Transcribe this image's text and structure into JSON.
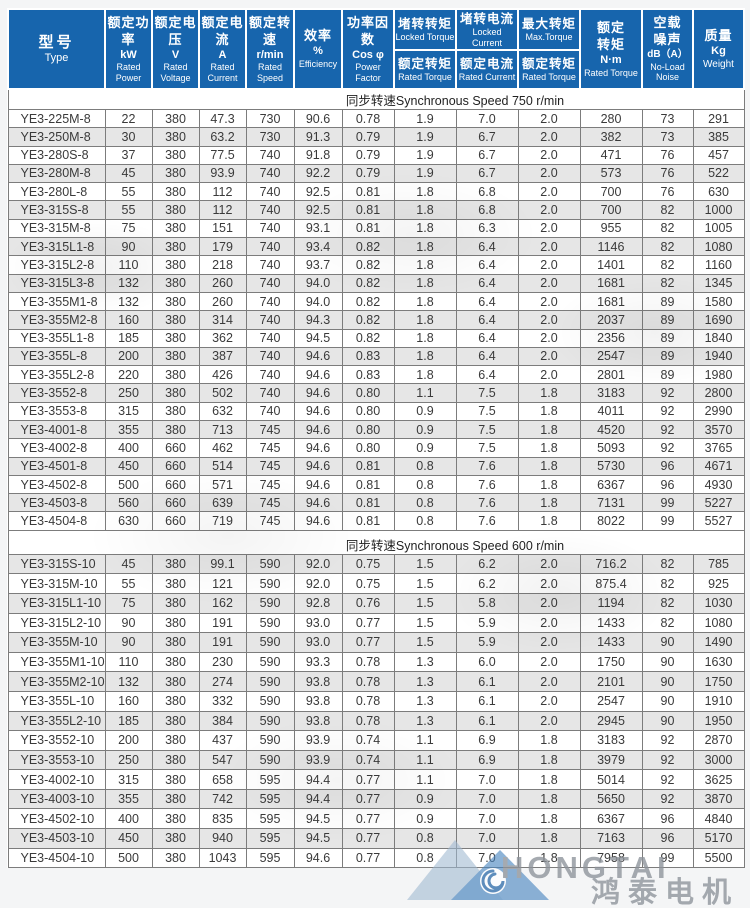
{
  "colors": {
    "header_bg": "#1765ad",
    "header_text": "#ffffff",
    "row_stripe": "#e6e6e6",
    "grid_border": "#7c7c7c",
    "logo_blue_light": "#9fb8d0",
    "logo_blue": "#4a86c0",
    "logo_swirl": "#3570ad",
    "logo_gray": "#8d939a"
  },
  "header": {
    "cols": [
      {
        "cn": "型号",
        "en": "Type"
      },
      {
        "cn": "额定功率",
        "unit": "kW",
        "en": "Rated Power"
      },
      {
        "cn": "额定电压",
        "unit": "V",
        "en": "Rated Voltage"
      },
      {
        "cn": "额定电流",
        "unit": "A",
        "en": "Rated Current"
      },
      {
        "cn": "额定转速",
        "unit": "r/min",
        "en": "Rated Speed"
      },
      {
        "cn": "效率",
        "unit": "%",
        "en": "Efficiency"
      },
      {
        "cn": "功率因数",
        "unit": "Cos φ",
        "en": "Power Factor"
      },
      {
        "cn1": "额定",
        "cn2": "转矩",
        "unit": "N·m",
        "en": "Rated Torque"
      },
      {
        "cn1": "空载",
        "cn2": "噪声",
        "unit": "dB（A）",
        "en": "No-Load Noise"
      },
      {
        "cn": "质量",
        "unit": "Kg",
        "en": "Weight"
      }
    ],
    "split": [
      {
        "top_cn": "堵转转矩",
        "top_en": "Locked Torque",
        "bottom_cn": "额定转矩",
        "bottom_en": "Rated Torque"
      },
      {
        "top_cn": "堵转电流",
        "top_en": "Locked Current",
        "bottom_cn": "额定电流",
        "bottom_en": "Rated Current"
      },
      {
        "top_cn": "最大转矩",
        "top_en": "Max.Torque",
        "bottom_cn": "额定转矩",
        "bottom_en": "Rated Torque"
      }
    ]
  },
  "table": {
    "sections": [
      {
        "title": "同步转速Synchronous Speed 750 r/min",
        "first_row_shaded": false,
        "rows": [
          [
            "YE3-225M-8",
            "22",
            "380",
            "47.3",
            "730",
            "90.6",
            "0.78",
            "1.9",
            "7.0",
            "2.0",
            "280",
            "73",
            "291"
          ],
          [
            "YE3-250M-8",
            "30",
            "380",
            "63.2",
            "730",
            "91.3",
            "0.79",
            "1.9",
            "6.7",
            "2.0",
            "382",
            "73",
            "385"
          ],
          [
            "YE3-280S-8",
            "37",
            "380",
            "77.5",
            "740",
            "91.8",
            "0.79",
            "1.9",
            "6.7",
            "2.0",
            "471",
            "76",
            "457"
          ],
          [
            "YE3-280M-8",
            "45",
            "380",
            "93.9",
            "740",
            "92.2",
            "0.79",
            "1.9",
            "6.7",
            "2.0",
            "573",
            "76",
            "522"
          ],
          [
            "YE3-280L-8",
            "55",
            "380",
            "112",
            "740",
            "92.5",
            "0.81",
            "1.8",
            "6.8",
            "2.0",
            "700",
            "76",
            "630"
          ],
          [
            "YE3-315S-8",
            "55",
            "380",
            "112",
            "740",
            "92.5",
            "0.81",
            "1.8",
            "6.8",
            "2.0",
            "700",
            "82",
            "1000"
          ],
          [
            "YE3-315M-8",
            "75",
            "380",
            "151",
            "740",
            "93.1",
            "0.81",
            "1.8",
            "6.3",
            "2.0",
            "955",
            "82",
            "1005"
          ],
          [
            "YE3-315L1-8",
            "90",
            "380",
            "179",
            "740",
            "93.4",
            "0.82",
            "1.8",
            "6.4",
            "2.0",
            "1146",
            "82",
            "1080"
          ],
          [
            "YE3-315L2-8",
            "110",
            "380",
            "218",
            "740",
            "93.7",
            "0.82",
            "1.8",
            "6.4",
            "2.0",
            "1401",
            "82",
            "1160"
          ],
          [
            "YE3-315L3-8",
            "132",
            "380",
            "260",
            "740",
            "94.0",
            "0.82",
            "1.8",
            "6.4",
            "2.0",
            "1681",
            "82",
            "1345"
          ],
          [
            "YE3-355M1-8",
            "132",
            "380",
            "260",
            "740",
            "94.0",
            "0.82",
            "1.8",
            "6.4",
            "2.0",
            "1681",
            "89",
            "1580"
          ],
          [
            "YE3-355M2-8",
            "160",
            "380",
            "314",
            "740",
            "94.3",
            "0.82",
            "1.8",
            "6.4",
            "2.0",
            "2037",
            "89",
            "1690"
          ],
          [
            "YE3-355L1-8",
            "185",
            "380",
            "362",
            "740",
            "94.5",
            "0.82",
            "1.8",
            "6.4",
            "2.0",
            "2356",
            "89",
            "1840"
          ],
          [
            "YE3-355L-8",
            "200",
            "380",
            "387",
            "740",
            "94.6",
            "0.83",
            "1.8",
            "6.4",
            "2.0",
            "2547",
            "89",
            "1940"
          ],
          [
            "YE3-355L2-8",
            "220",
            "380",
            "426",
            "740",
            "94.6",
            "0.83",
            "1.8",
            "6.4",
            "2.0",
            "2801",
            "89",
            "1980"
          ],
          [
            "YE3-3552-8",
            "250",
            "380",
            "502",
            "740",
            "94.6",
            "0.80",
            "1.1",
            "7.5",
            "1.8",
            "3183",
            "92",
            "2800"
          ],
          [
            "YE3-3553-8",
            "315",
            "380",
            "632",
            "740",
            "94.6",
            "0.80",
            "0.9",
            "7.5",
            "1.8",
            "4011",
            "92",
            "2990"
          ],
          [
            "YE3-4001-8",
            "355",
            "380",
            "713",
            "745",
            "94.6",
            "0.80",
            "0.9",
            "7.5",
            "1.8",
            "4520",
            "92",
            "3570"
          ],
          [
            "YE3-4002-8",
            "400",
            "660",
            "462",
            "745",
            "94.6",
            "0.80",
            "0.9",
            "7.5",
            "1.8",
            "5093",
            "92",
            "3765"
          ],
          [
            "YE3-4501-8",
            "450",
            "660",
            "514",
            "745",
            "94.6",
            "0.81",
            "0.8",
            "7.6",
            "1.8",
            "5730",
            "96",
            "4671"
          ],
          [
            "YE3-4502-8",
            "500",
            "660",
            "571",
            "745",
            "94.6",
            "0.81",
            "0.8",
            "7.6",
            "1.8",
            "6367",
            "96",
            "4930"
          ],
          [
            "YE3-4503-8",
            "560",
            "660",
            "639",
            "745",
            "94.6",
            "0.81",
            "0.8",
            "7.6",
            "1.8",
            "7131",
            "99",
            "5227"
          ],
          [
            "YE3-4504-8",
            "630",
            "660",
            "719",
            "745",
            "94.6",
            "0.81",
            "0.8",
            "7.6",
            "1.8",
            "8022",
            "99",
            "5527"
          ]
        ]
      },
      {
        "title": "同步转速Synchronous Speed 600 r/min",
        "first_row_shaded": true,
        "rows": [
          [
            "YE3-315S-10",
            "45",
            "380",
            "99.1",
            "590",
            "92.0",
            "0.75",
            "1.5",
            "6.2",
            "2.0",
            "716.2",
            "82",
            "785"
          ],
          [
            "YE3-315M-10",
            "55",
            "380",
            "121",
            "590",
            "92.0",
            "0.75",
            "1.5",
            "6.2",
            "2.0",
            "875.4",
            "82",
            "925"
          ],
          [
            "YE3-315L1-10",
            "75",
            "380",
            "162",
            "590",
            "92.8",
            "0.76",
            "1.5",
            "5.8",
            "2.0",
            "1194",
            "82",
            "1030"
          ],
          [
            "YE3-315L2-10",
            "90",
            "380",
            "191",
            "590",
            "93.0",
            "0.77",
            "1.5",
            "5.9",
            "2.0",
            "1433",
            "82",
            "1080"
          ],
          [
            "YE3-355M-10",
            "90",
            "380",
            "191",
            "590",
            "93.0",
            "0.77",
            "1.5",
            "5.9",
            "2.0",
            "1433",
            "90",
            "1490"
          ],
          [
            "YE3-355M1-10",
            "110",
            "380",
            "230",
            "590",
            "93.3",
            "0.78",
            "1.3",
            "6.0",
            "2.0",
            "1750",
            "90",
            "1630"
          ],
          [
            "YE3-355M2-10",
            "132",
            "380",
            "274",
            "590",
            "93.8",
            "0.78",
            "1.3",
            "6.1",
            "2.0",
            "2101",
            "90",
            "1750"
          ],
          [
            "YE3-355L-10",
            "160",
            "380",
            "332",
            "590",
            "93.8",
            "0.78",
            "1.3",
            "6.1",
            "2.0",
            "2547",
            "90",
            "1910"
          ],
          [
            "YE3-355L2-10",
            "185",
            "380",
            "384",
            "590",
            "93.8",
            "0.78",
            "1.3",
            "6.1",
            "2.0",
            "2945",
            "90",
            "1950"
          ],
          [
            "YE3-3552-10",
            "200",
            "380",
            "437",
            "590",
            "93.9",
            "0.74",
            "1.1",
            "6.9",
            "1.8",
            "3183",
            "92",
            "2870"
          ],
          [
            "YE3-3553-10",
            "250",
            "380",
            "547",
            "590",
            "93.9",
            "0.74",
            "1.1",
            "6.9",
            "1.8",
            "3979",
            "92",
            "3000"
          ],
          [
            "YE3-4002-10",
            "315",
            "380",
            "658",
            "595",
            "94.4",
            "0.77",
            "1.1",
            "7.0",
            "1.8",
            "5014",
            "92",
            "3625"
          ],
          [
            "YE3-4003-10",
            "355",
            "380",
            "742",
            "595",
            "94.4",
            "0.77",
            "0.9",
            "7.0",
            "1.8",
            "5650",
            "92",
            "3870"
          ],
          [
            "YE3-4502-10",
            "400",
            "380",
            "835",
            "595",
            "94.5",
            "0.77",
            "0.9",
            "7.0",
            "1.8",
            "6367",
            "96",
            "4840"
          ],
          [
            "YE3-4503-10",
            "450",
            "380",
            "940",
            "595",
            "94.5",
            "0.77",
            "0.8",
            "7.0",
            "1.8",
            "7163",
            "96",
            "5170"
          ],
          [
            "YE3-4504-10",
            "500",
            "380",
            "1043",
            "595",
            "94.6",
            "0.77",
            "0.8",
            "7.0",
            "1.8",
            "7958",
            "99",
            "5500"
          ]
        ]
      }
    ]
  },
  "watermark": {
    "brand_en": "HONGTAI",
    "brand_cn": "鸿泰电机"
  }
}
